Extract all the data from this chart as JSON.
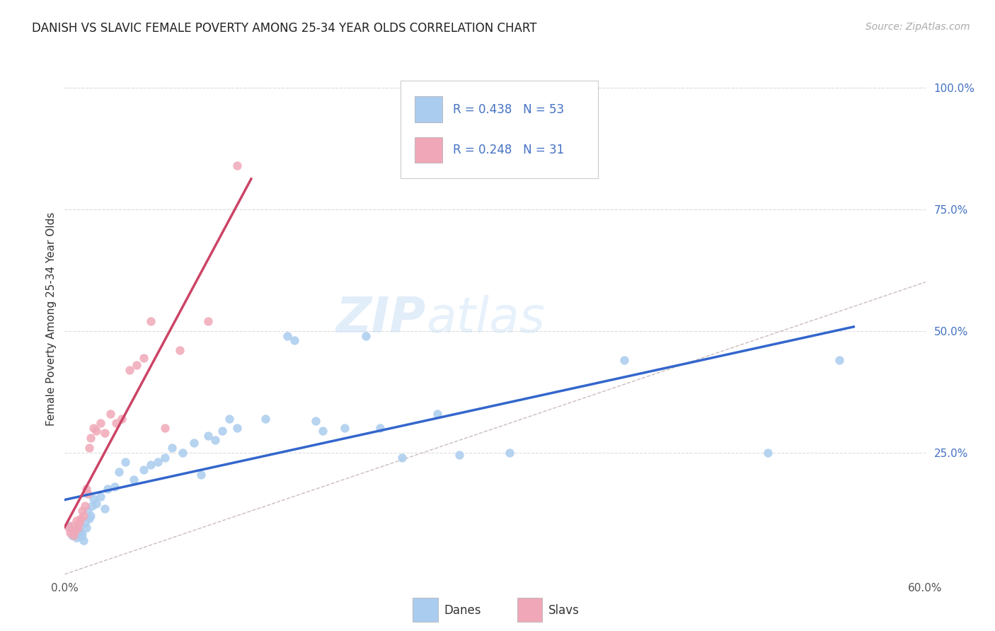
{
  "title": "DANISH VS SLAVIC FEMALE POVERTY AMONG 25-34 YEAR OLDS CORRELATION CHART",
  "source": "Source: ZipAtlas.com",
  "ylabel": "Female Poverty Among 25-34 Year Olds",
  "title_color": "#222222",
  "source_color": "#aaaaaa",
  "danes_color": "#aaccee",
  "slavs_color": "#f0a8b8",
  "danes_line_color": "#3366cc",
  "slavs_line_color": "#cc4466",
  "diag_color": "#ccbbbb",
  "legend_R_color": "#4472c4",
  "danes_R": 0.438,
  "danes_N": 53,
  "slavs_R": 0.248,
  "slavs_N": 31,
  "xlim": [
    0.0,
    0.6
  ],
  "ylim": [
    0.0,
    1.05
  ],
  "danes_x": [
    0.003,
    0.005,
    0.006,
    0.007,
    0.008,
    0.009,
    0.01,
    0.011,
    0.012,
    0.013,
    0.014,
    0.015,
    0.016,
    0.017,
    0.018,
    0.019,
    0.02,
    0.022,
    0.025,
    0.028,
    0.03,
    0.035,
    0.038,
    0.042,
    0.048,
    0.055,
    0.06,
    0.065,
    0.07,
    0.075,
    0.082,
    0.09,
    0.095,
    0.1,
    0.105,
    0.11,
    0.115,
    0.12,
    0.14,
    0.155,
    0.16,
    0.175,
    0.18,
    0.195,
    0.21,
    0.22,
    0.235,
    0.26,
    0.275,
    0.31,
    0.39,
    0.49,
    0.54
  ],
  "danes_y": [
    0.1,
    0.08,
    0.09,
    0.085,
    0.075,
    0.095,
    0.088,
    0.078,
    0.082,
    0.07,
    0.105,
    0.095,
    0.13,
    0.115,
    0.12,
    0.14,
    0.155,
    0.145,
    0.16,
    0.135,
    0.175,
    0.18,
    0.21,
    0.23,
    0.195,
    0.215,
    0.225,
    0.23,
    0.24,
    0.26,
    0.25,
    0.27,
    0.205,
    0.285,
    0.275,
    0.295,
    0.32,
    0.3,
    0.32,
    0.49,
    0.48,
    0.315,
    0.295,
    0.3,
    0.49,
    0.3,
    0.24,
    0.33,
    0.245,
    0.25,
    0.44,
    0.25,
    0.44
  ],
  "slavs_x": [
    0.003,
    0.004,
    0.005,
    0.006,
    0.007,
    0.008,
    0.009,
    0.01,
    0.011,
    0.012,
    0.013,
    0.014,
    0.015,
    0.016,
    0.017,
    0.018,
    0.02,
    0.022,
    0.025,
    0.028,
    0.032,
    0.036,
    0.04,
    0.045,
    0.05,
    0.055,
    0.06,
    0.07,
    0.08,
    0.1,
    0.12
  ],
  "slavs_y": [
    0.095,
    0.085,
    0.1,
    0.08,
    0.09,
    0.11,
    0.095,
    0.105,
    0.115,
    0.13,
    0.12,
    0.14,
    0.175,
    0.165,
    0.26,
    0.28,
    0.3,
    0.295,
    0.31,
    0.29,
    0.33,
    0.31,
    0.32,
    0.42,
    0.43,
    0.445,
    0.52,
    0.3,
    0.46,
    0.52,
    0.84
  ]
}
